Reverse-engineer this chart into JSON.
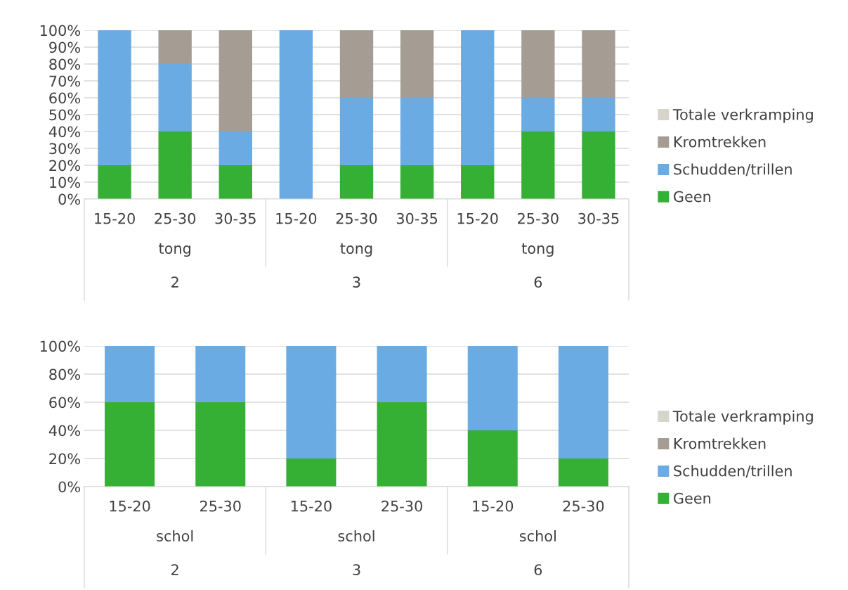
{
  "chart_data": [
    {
      "type": "bar",
      "stacked": true,
      "categories": [
        "15-20",
        "25-30",
        "30-35",
        "15-20",
        "25-30",
        "30-35",
        "15-20",
        "25-30",
        "30-35"
      ],
      "series": [
        {
          "name": "Geen",
          "color": "#35b035",
          "values": [
            20,
            40,
            20,
            null,
            20,
            20,
            20,
            40,
            40
          ]
        },
        {
          "name": "Schudden/trillen",
          "color": "#6aabe3",
          "values": [
            80,
            40,
            20,
            100,
            40,
            40,
            80,
            20,
            20
          ]
        },
        {
          "name": "Kromtrekken",
          "color": "#a59d94",
          "values": [
            null,
            20,
            60,
            null,
            40,
            40,
            null,
            40,
            40
          ]
        },
        {
          "name": "Totale verkramping",
          "color": "#d6d5cc",
          "values": [
            null,
            null,
            null,
            null,
            null,
            null,
            null,
            null,
            null
          ]
        }
      ],
      "ylim": [
        0,
        100
      ],
      "yticks": [
        {
          "value": 0,
          "label": "0%"
        },
        {
          "value": 10,
          "label": "10%"
        },
        {
          "value": 20,
          "label": "20%"
        },
        {
          "value": 30,
          "label": "30%"
        },
        {
          "value": 40,
          "label": "40%"
        },
        {
          "value": 50,
          "label": "50%"
        },
        {
          "value": 60,
          "label": "60%"
        },
        {
          "value": 70,
          "label": "70%"
        },
        {
          "value": 80,
          "label": "80%"
        },
        {
          "value": 90,
          "label": "90%"
        },
        {
          "value": 100,
          "label": "100%"
        }
      ],
      "grid": "y",
      "legend": "right",
      "annotations": [
        "tong",
        "tong",
        "tong",
        "2",
        "3",
        "6"
      ]
    },
    {
      "type": "bar",
      "stacked": true,
      "categories": [
        "15-20",
        "25-30",
        "15-20",
        "25-30",
        "15-20",
        "25-30"
      ],
      "series": [
        {
          "name": "Geen",
          "color": "#35b035",
          "values": [
            60,
            60,
            20,
            60,
            40,
            20
          ]
        },
        {
          "name": "Schudden/trillen",
          "color": "#6aabe3",
          "values": [
            40,
            40,
            80,
            40,
            60,
            80
          ]
        },
        {
          "name": "Kromtrekken",
          "color": "#a59d94",
          "values": [
            null,
            null,
            null,
            null,
            null,
            null
          ]
        },
        {
          "name": "Totale verkramping",
          "color": "#d6d5cc",
          "values": [
            null,
            null,
            null,
            null,
            null,
            null
          ]
        }
      ],
      "ylim": [
        0,
        100
      ],
      "yticks": [
        {
          "value": 0,
          "label": "0%"
        },
        {
          "value": 20,
          "label": "20%"
        },
        {
          "value": 40,
          "label": "40%"
        },
        {
          "value": 60,
          "label": "60%"
        },
        {
          "value": 80,
          "label": "80%"
        },
        {
          "value": 100,
          "label": "100%"
        }
      ],
      "grid": "y",
      "legend": "right",
      "annotations": [
        "schol",
        "schol",
        "schol",
        "2",
        "3",
        "6"
      ]
    }
  ]
}
